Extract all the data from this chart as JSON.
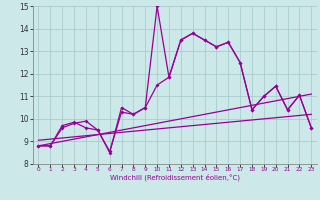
{
  "xlabel": "Windchill (Refroidissement éolien,°C)",
  "background_color": "#cce8e8",
  "line_color": "#990099",
  "grid_color": "#aacccc",
  "xlim": [
    -0.5,
    23.5
  ],
  "ylim": [
    8,
    15
  ],
  "yticks": [
    8,
    9,
    10,
    11,
    12,
    13,
    14,
    15
  ],
  "xticks": [
    0,
    1,
    2,
    3,
    4,
    5,
    6,
    7,
    8,
    9,
    10,
    11,
    12,
    13,
    14,
    15,
    16,
    17,
    18,
    19,
    20,
    21,
    22,
    23
  ],
  "x": [
    0,
    1,
    2,
    3,
    4,
    5,
    6,
    7,
    8,
    9,
    10,
    11,
    12,
    13,
    14,
    15,
    16,
    17,
    18,
    19,
    20,
    21,
    22,
    23
  ],
  "line_flat": [
    9.05,
    9.1,
    9.15,
    9.2,
    9.25,
    9.3,
    9.35,
    9.4,
    9.45,
    9.5,
    9.55,
    9.6,
    9.65,
    9.7,
    9.75,
    9.8,
    9.85,
    9.9,
    9.95,
    10.0,
    10.05,
    10.1,
    10.15,
    10.2
  ],
  "line_rise": [
    8.8,
    8.9,
    9.0,
    9.1,
    9.2,
    9.3,
    9.4,
    9.5,
    9.6,
    9.7,
    9.8,
    9.9,
    10.0,
    10.1,
    10.2,
    10.3,
    10.4,
    10.5,
    10.6,
    10.7,
    10.8,
    10.9,
    11.0,
    11.1
  ],
  "line_jagged1": [
    8.8,
    8.8,
    9.6,
    9.8,
    9.9,
    9.5,
    8.55,
    10.3,
    10.2,
    10.5,
    11.5,
    11.85,
    13.5,
    13.8,
    13.5,
    13.2,
    13.4,
    12.5,
    10.4,
    11.0,
    11.45,
    10.4,
    11.05,
    9.6
  ],
  "line_jagged2": [
    8.8,
    8.8,
    9.7,
    9.85,
    9.6,
    9.5,
    8.5,
    10.5,
    10.2,
    10.5,
    15.0,
    11.85,
    13.5,
    13.8,
    13.5,
    13.2,
    13.4,
    12.5,
    10.4,
    11.0,
    11.45,
    10.4,
    11.05,
    9.6
  ]
}
